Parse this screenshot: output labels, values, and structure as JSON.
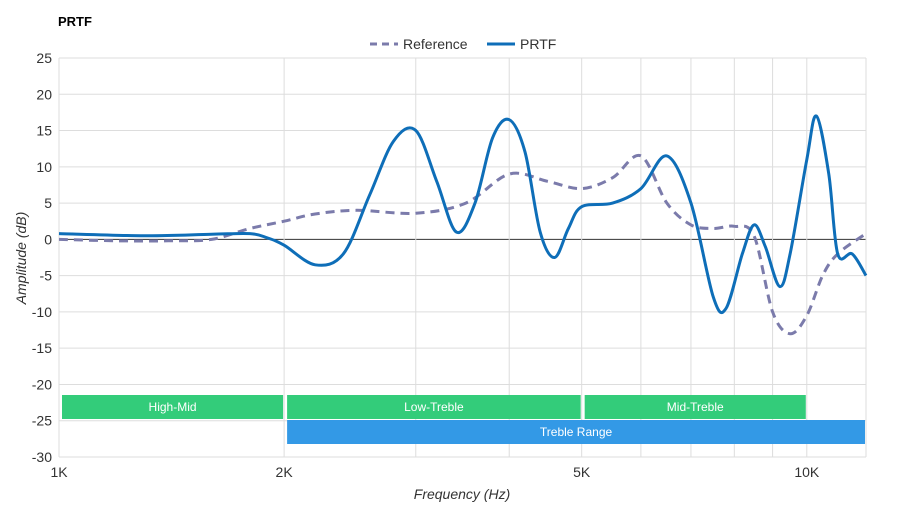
{
  "chart_data": {
    "type": "line",
    "title": "PRTF",
    "xlabel": "Frequency (Hz)",
    "ylabel": "Amplitude (dB)",
    "x_scale": "log",
    "xlim": [
      1000,
      12000
    ],
    "ylim": [
      -30,
      25
    ],
    "x_ticks": [
      {
        "value": 1000,
        "label": "1K"
      },
      {
        "value": 2000,
        "label": "2K"
      },
      {
        "value": 5000,
        "label": "5K"
      },
      {
        "value": 10000,
        "label": "10K"
      }
    ],
    "x_gridlines": [
      1000,
      2000,
      3000,
      4000,
      5000,
      6000,
      7000,
      8000,
      9000,
      10000,
      12000
    ],
    "y_ticks": [
      25,
      20,
      15,
      10,
      5,
      0,
      -5,
      -10,
      -15,
      -20,
      -25,
      -30
    ],
    "grid": true,
    "legend_position": "top-center",
    "series": [
      {
        "name": "Reference",
        "color": "#7b7bab",
        "style": "dashed",
        "points": [
          [
            1000,
            0
          ],
          [
            1200,
            -0.2
          ],
          [
            1400,
            -0.2
          ],
          [
            1600,
            0
          ],
          [
            1800,
            1.5
          ],
          [
            2000,
            2.5
          ],
          [
            2200,
            3.5
          ],
          [
            2500,
            4.0
          ],
          [
            3000,
            3.6
          ],
          [
            3500,
            5.0
          ],
          [
            4000,
            9.0
          ],
          [
            4500,
            8.0
          ],
          [
            5000,
            7.0
          ],
          [
            5500,
            8.5
          ],
          [
            6000,
            11.5
          ],
          [
            6500,
            5.0
          ],
          [
            7000,
            2.0
          ],
          [
            7500,
            1.5
          ],
          [
            8000,
            1.8
          ],
          [
            8500,
            0.5
          ],
          [
            9000,
            -10.0
          ],
          [
            9500,
            -13.0
          ],
          [
            10000,
            -10.5
          ],
          [
            10500,
            -5.0
          ],
          [
            11000,
            -2.0
          ],
          [
            12000,
            0.8
          ]
        ]
      },
      {
        "name": "PRTF",
        "color": "#0e6eb8",
        "style": "solid",
        "points": [
          [
            1000,
            0.8
          ],
          [
            1300,
            0.5
          ],
          [
            1600,
            0.7
          ],
          [
            1800,
            0.8
          ],
          [
            1900,
            0.2
          ],
          [
            2000,
            -0.8
          ],
          [
            2200,
            -3.5
          ],
          [
            2400,
            -2.0
          ],
          [
            2600,
            6.0
          ],
          [
            2800,
            13.5
          ],
          [
            3000,
            15.0
          ],
          [
            3200,
            8.0
          ],
          [
            3400,
            1.0
          ],
          [
            3600,
            5.0
          ],
          [
            3800,
            14.0
          ],
          [
            4000,
            16.5
          ],
          [
            4200,
            12.0
          ],
          [
            4400,
            1.0
          ],
          [
            4600,
            -2.5
          ],
          [
            4800,
            1.5
          ],
          [
            5000,
            4.5
          ],
          [
            5500,
            5.0
          ],
          [
            6000,
            7.0
          ],
          [
            6500,
            11.5
          ],
          [
            7000,
            5.0
          ],
          [
            7500,
            -8.0
          ],
          [
            7800,
            -9.5
          ],
          [
            8200,
            -2.0
          ],
          [
            8500,
            2.0
          ],
          [
            8800,
            -1.0
          ],
          [
            9200,
            -6.5
          ],
          [
            9500,
            -2.0
          ],
          [
            10000,
            11.0
          ],
          [
            10300,
            17.0
          ],
          [
            10700,
            9.0
          ],
          [
            11000,
            -2.0
          ],
          [
            11500,
            -2.0
          ],
          [
            12000,
            -5.0
          ]
        ]
      }
    ],
    "bands": [
      {
        "label": "High-Mid",
        "start": 1000,
        "end": 2000,
        "color": "#33cc7a",
        "row": 0
      },
      {
        "label": "Low-Treble",
        "start": 2000,
        "end": 5000,
        "color": "#33cc7a",
        "row": 0
      },
      {
        "label": "Mid-Treble",
        "start": 5000,
        "end": 10000,
        "color": "#33cc7a",
        "row": 0
      },
      {
        "label": "Treble Range",
        "start": 2000,
        "end": 12000,
        "color": "#3399e6",
        "row": 1
      }
    ]
  }
}
